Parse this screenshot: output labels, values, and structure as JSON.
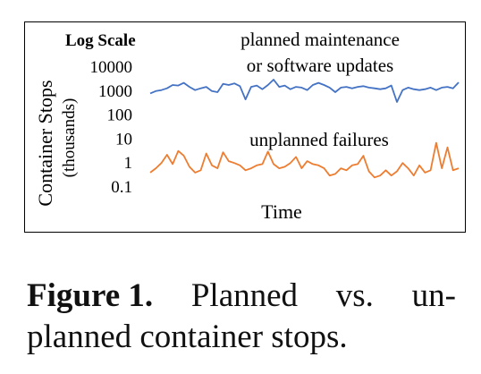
{
  "chart_data": {
    "type": "line",
    "scale_label": "Log Scale",
    "ylabel": "Container Stops",
    "ylabel_unit": "(thousands)",
    "xlabel": "Time",
    "y_scale": "log",
    "ylim": [
      0.1,
      10000
    ],
    "yticks": [
      "10000",
      "1000",
      "100",
      "10",
      "1",
      "0.1"
    ],
    "ytick_values": [
      10000,
      1000,
      100,
      10,
      1,
      0.1
    ],
    "grid": false,
    "series": [
      {
        "name": "planned maintenance or software updates",
        "label_lines": [
          "planned maintenance",
          "or software updates"
        ],
        "color": "#4472c4",
        "values": [
          800,
          1000,
          1100,
          1300,
          1800,
          1700,
          2200,
          1500,
          1100,
          1300,
          1500,
          1000,
          900,
          2000,
          1800,
          2100,
          1600,
          450,
          1500,
          1700,
          1200,
          1800,
          3000,
          1500,
          1700,
          1200,
          1500,
          1400,
          1100,
          1800,
          2200,
          1800,
          1400,
          900,
          1400,
          1500,
          1300,
          1500,
          1600,
          1400,
          1300,
          1200,
          1300,
          1700,
          350,
          1100,
          1400,
          1200,
          1100,
          1200,
          1400,
          1100,
          1400,
          1500,
          1300,
          2300
        ]
      },
      {
        "name": "unplanned failures",
        "label_lines": [
          "unplanned failures"
        ],
        "color": "#ed7d31",
        "values": [
          0.4,
          0.6,
          1.0,
          2.2,
          0.9,
          3.2,
          2.0,
          0.7,
          0.4,
          0.5,
          2.5,
          0.8,
          0.6,
          2.8,
          1.2,
          1.0,
          0.8,
          0.5,
          0.6,
          0.8,
          0.9,
          3.0,
          0.9,
          0.6,
          0.7,
          1.0,
          1.8,
          0.6,
          1.2,
          0.9,
          0.8,
          0.6,
          0.3,
          0.35,
          0.6,
          0.5,
          0.8,
          0.9,
          2.0,
          0.45,
          0.25,
          0.3,
          0.5,
          0.3,
          0.45,
          1.0,
          0.6,
          0.3,
          0.8,
          0.4,
          0.5,
          7.0,
          0.6,
          4.5,
          0.5,
          0.6
        ]
      }
    ]
  },
  "caption": {
    "label": "Figure 1.",
    "line1_words": [
      "Planned",
      "vs.",
      "un-"
    ],
    "line2": "planned container stops."
  }
}
